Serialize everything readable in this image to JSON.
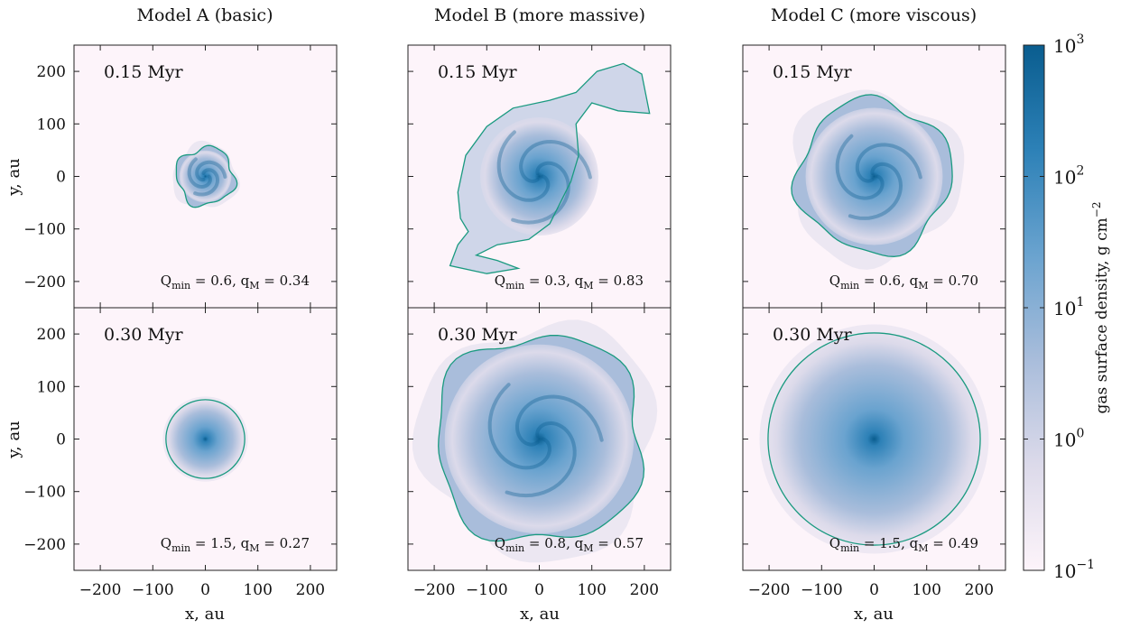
{
  "chart_data": {
    "type": "heatmap",
    "description_units": {
      "x": "au",
      "y": "au"
    },
    "xlabel": "x, au",
    "ylabel": "y, au",
    "xlim": [
      -250,
      250
    ],
    "ylim": [
      -250,
      250
    ],
    "xticks": [
      -200,
      -100,
      0,
      100,
      200
    ],
    "yticks": [
      200,
      100,
      0,
      -100,
      -200
    ],
    "xtick_labels": [
      "−200",
      "−100",
      "0",
      "100",
      "200"
    ],
    "ytick_labels": [
      "200",
      "100",
      "0",
      "−100",
      "−200"
    ],
    "columns": [
      {
        "title": "Model A (basic)"
      },
      {
        "title": "Model B (more massive)"
      },
      {
        "title": "Model C (more viscous)"
      }
    ],
    "panels": [
      {
        "row": 0,
        "col": 0,
        "time": "0.15 Myr",
        "q_min": "0.6",
        "q_m": "0.34",
        "disk_radius_au": 55,
        "peak": 0.85,
        "spiral": true,
        "shape": "blob"
      },
      {
        "row": 0,
        "col": 1,
        "time": "0.15 Myr",
        "q_min": "0.3",
        "q_m": "0.83",
        "disk_radius_au": 150,
        "peak": 0.95,
        "spiral": true,
        "shape": "spiral-arm"
      },
      {
        "row": 0,
        "col": 2,
        "time": "0.15 Myr",
        "q_min": "0.6",
        "q_m": "0.70",
        "disk_radius_au": 145,
        "peak": 0.85,
        "spiral": true,
        "shape": "irregular"
      },
      {
        "row": 1,
        "col": 0,
        "time": "0.30 Myr",
        "q_min": "1.5",
        "q_m": "0.27",
        "disk_radius_au": 75,
        "peak": 0.9,
        "spiral": false,
        "shape": "circle"
      },
      {
        "row": 1,
        "col": 1,
        "time": "0.30 Myr",
        "q_min": "0.8",
        "q_m": "0.57",
        "disk_radius_au": 200,
        "peak": 0.95,
        "spiral": true,
        "shape": "irregular-large"
      },
      {
        "row": 1,
        "col": 2,
        "time": "0.30 Myr",
        "q_min": "1.5",
        "q_m": "0.49",
        "disk_radius_au": 202,
        "peak": 0.8,
        "spiral": false,
        "shape": "circle"
      }
    ],
    "annotation_template": {
      "q": "Q",
      "q_sub": "min",
      "qm": "q",
      "qm_sub": "M"
    },
    "colorbar": {
      "label": "gas surface density, g cm",
      "label_exp": "−2",
      "scale": "log",
      "range": [
        0.1,
        1000
      ],
      "ticks": [
        {
          "base": "10",
          "exp": "3",
          "value": 1000
        },
        {
          "base": "10",
          "exp": "2",
          "value": 100
        },
        {
          "base": "10",
          "exp": "1",
          "value": 10
        },
        {
          "base": "10",
          "exp": "0",
          "value": 1
        },
        {
          "base": "10",
          "exp": "−1",
          "value": 0.1
        }
      ],
      "colors": [
        "#fdf4fa",
        "#dcdaea",
        "#a9bddb",
        "#6aa3cf",
        "#2d81b7",
        "#0a5d8f"
      ]
    },
    "contour_color": "#1a9a80",
    "background_color": "#fdf4fa"
  }
}
